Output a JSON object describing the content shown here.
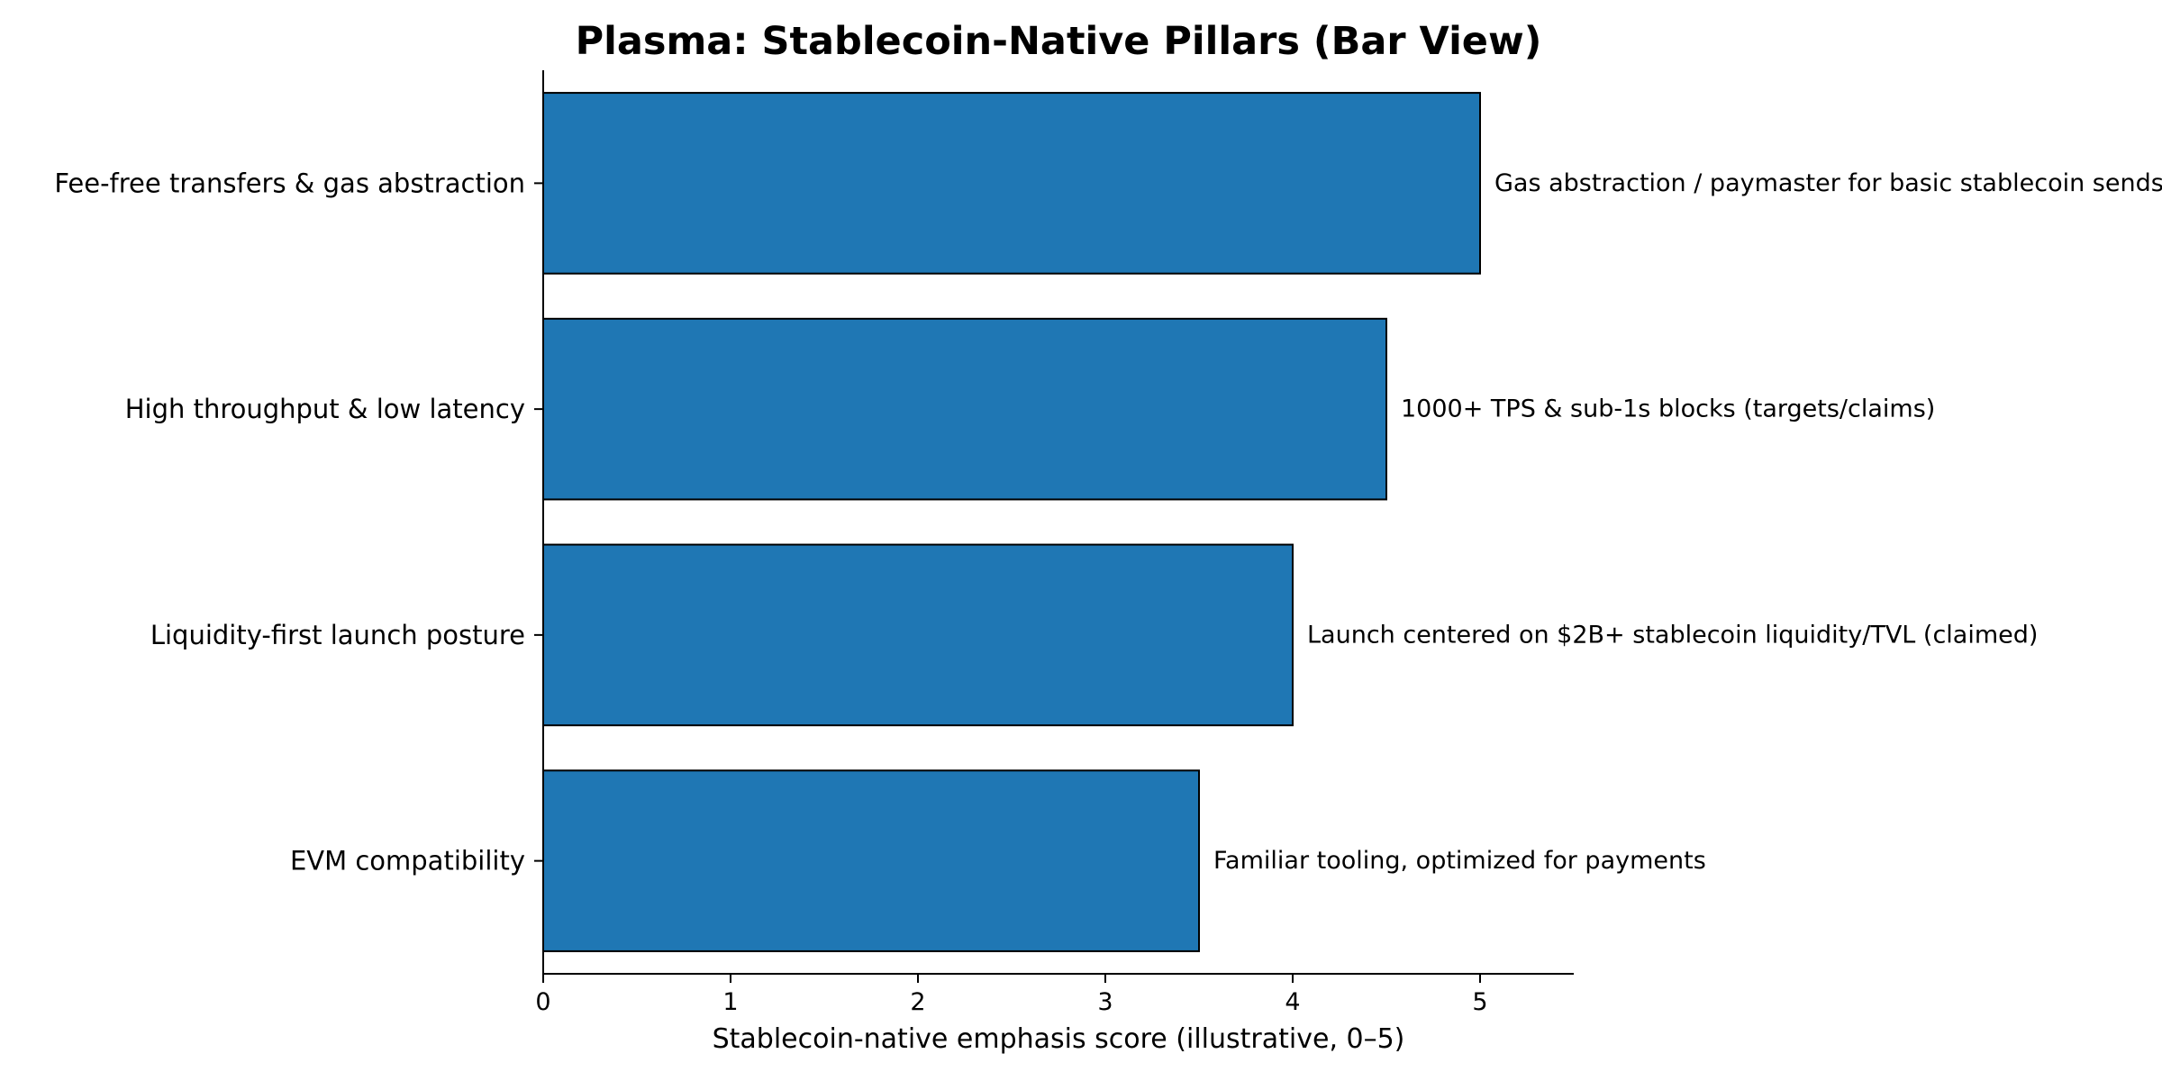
{
  "chart_data": {
    "type": "bar",
    "orientation": "horizontal",
    "title": "Plasma: Stablecoin-Native Pillars (Bar View)",
    "xlabel": "Stablecoin-native emphasis score (illustrative, 0–5)",
    "ylabel": "",
    "xlim": [
      0,
      5.5
    ],
    "xticks": [
      "0",
      "1",
      "2",
      "3",
      "4",
      "5"
    ],
    "grid": false,
    "bar_color": "#1f77b4",
    "bar_edge_color": "#000000",
    "categories": [
      "Fee-free transfers & gas abstraction",
      "High throughput & low latency",
      "Liquidity-first launch posture",
      "EVM compatibility"
    ],
    "values": [
      5,
      4.5,
      4,
      3.5
    ],
    "annotations": [
      "Gas abstraction / paymaster for basic stablecoin sends",
      "1000+ TPS & sub-1s blocks (targets/claims)",
      "Launch centered on $2B+ stablecoin liquidity/TVL (claimed)",
      "Familiar tooling, optimized for payments"
    ]
  }
}
